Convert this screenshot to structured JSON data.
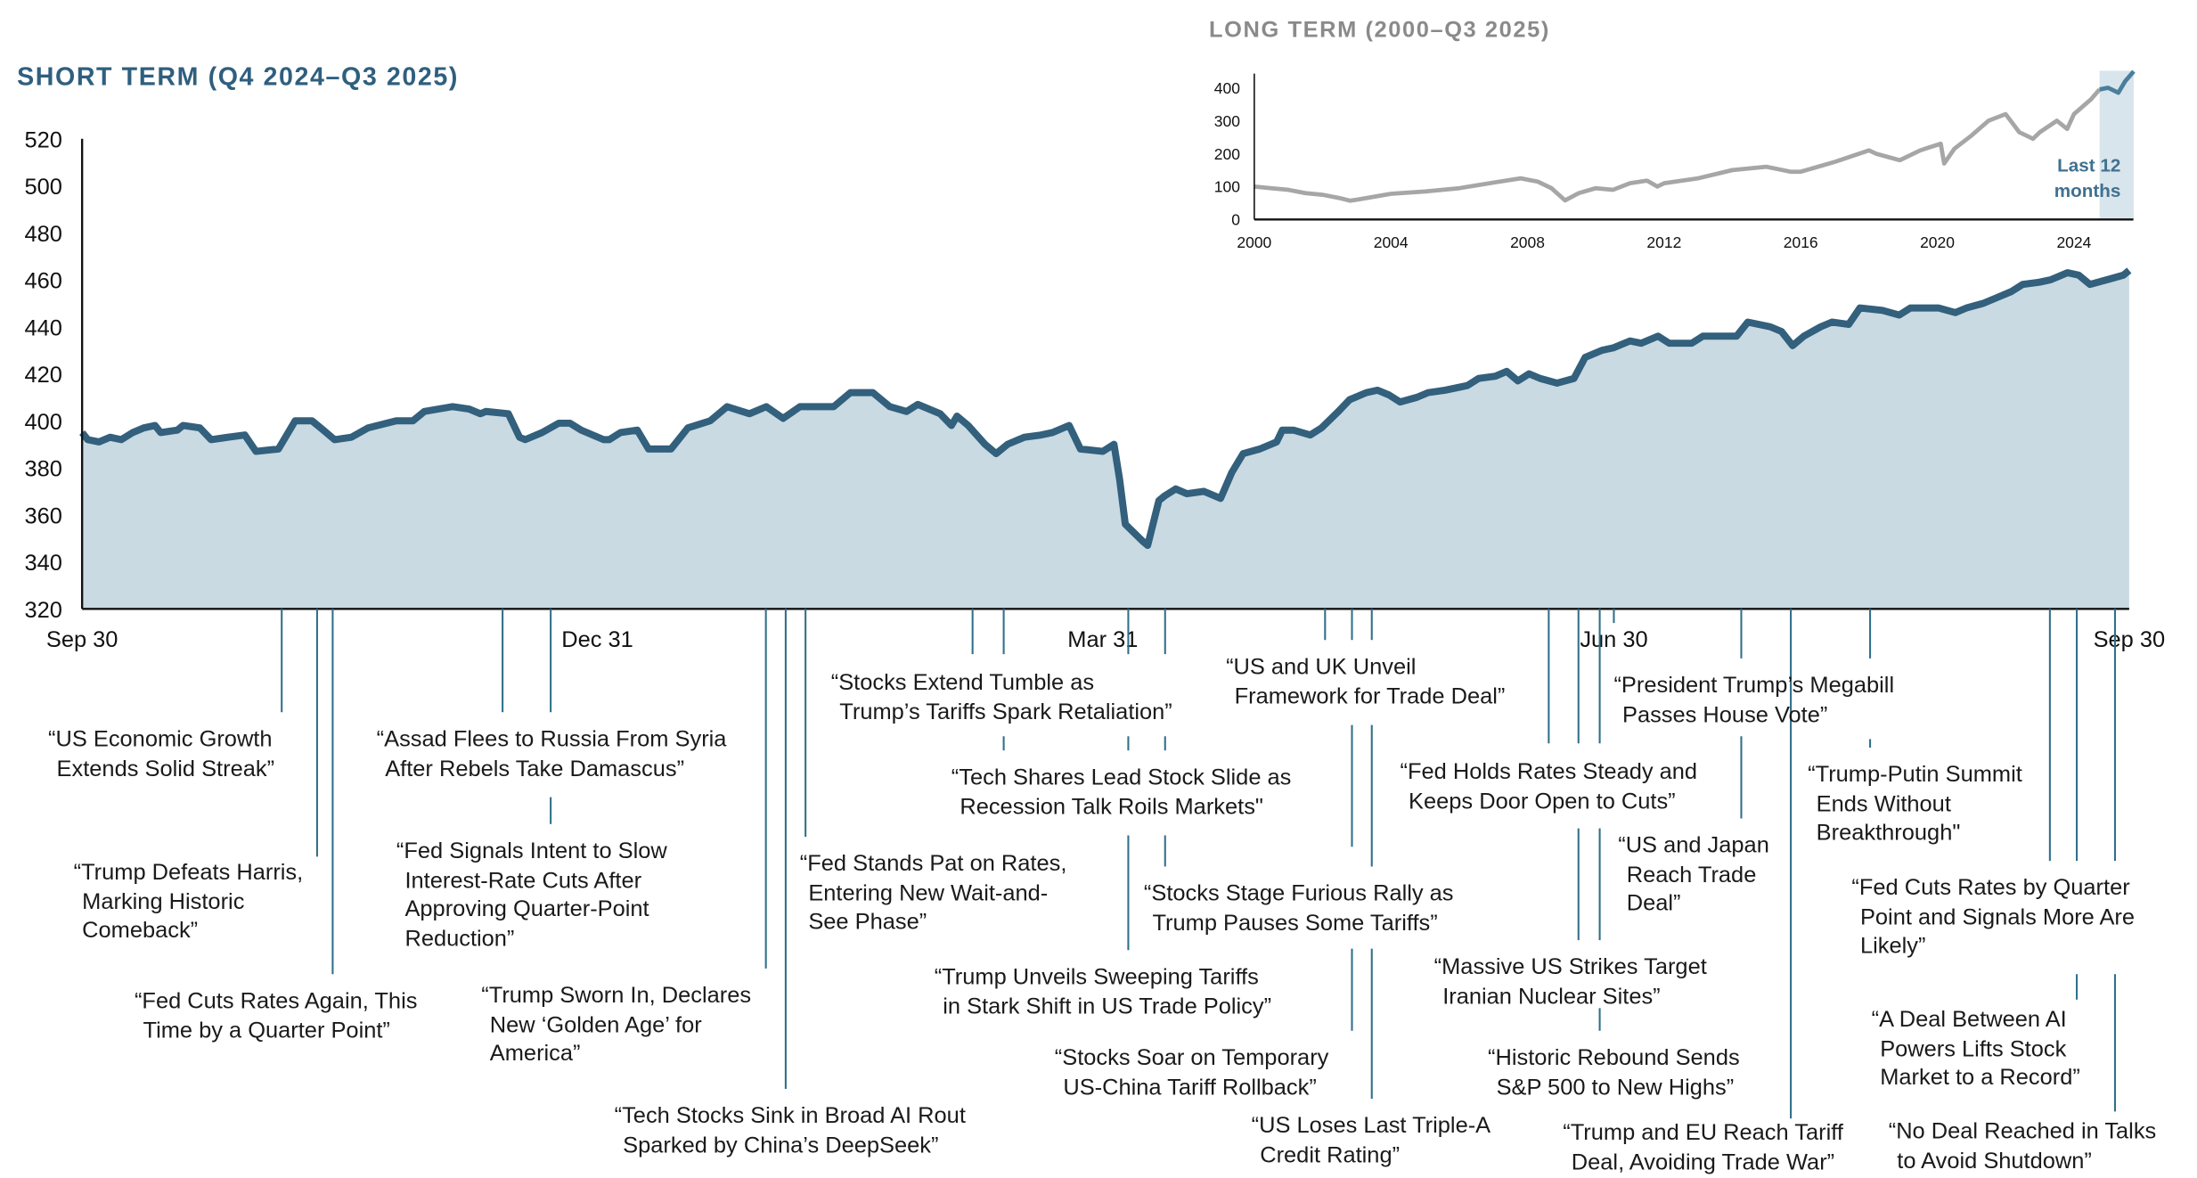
{
  "chart_data": [
    {
      "type": "area",
      "title": "SHORT TERM (Q4 2024–Q3 2025)",
      "xlabel": "",
      "ylabel": "",
      "x_unit": "days since Sep 30, 2024",
      "ylim": [
        320,
        520
      ],
      "yticks": [
        320,
        340,
        360,
        380,
        400,
        420,
        440,
        460,
        480,
        500,
        520
      ],
      "xticks": [
        {
          "day": 0,
          "label": "Sep 30"
        },
        {
          "day": 92,
          "label": "Dec 31"
        },
        {
          "day": 182,
          "label": "Mar 31"
        },
        {
          "day": 273,
          "label": "Jun 30"
        },
        {
          "day": 365,
          "label": "Sep 30"
        }
      ],
      "x": [
        0,
        1,
        3,
        5,
        7,
        9,
        11,
        13,
        14,
        17,
        18,
        21,
        23,
        26,
        29,
        31,
        35,
        38,
        41,
        43,
        45,
        48,
        51,
        56,
        59,
        61,
        66,
        69,
        71,
        72,
        76,
        78,
        79,
        82,
        85,
        87,
        89,
        93,
        94,
        96,
        99,
        101,
        105,
        108,
        112,
        115,
        119,
        122,
        125,
        128,
        130,
        134,
        137,
        141,
        144,
        147,
        149,
        153,
        155,
        156,
        158,
        161,
        163,
        165,
        168,
        171,
        173,
        176,
        178,
        182,
        184,
        185,
        186,
        189,
        190,
        192,
        193,
        195,
        197,
        200,
        203,
        205,
        207,
        210,
        213,
        214,
        216,
        219,
        221,
        224,
        226,
        229,
        231,
        233,
        235,
        238,
        240,
        243,
        247,
        249,
        252,
        254,
        256,
        258,
        260,
        263,
        266,
        268,
        271,
        273,
        276,
        278,
        281,
        283,
        287,
        289,
        292,
        295,
        297,
        301,
        303,
        305,
        307,
        310,
        312,
        315,
        317,
        321,
        324,
        326,
        329,
        331,
        334,
        336,
        339,
        341,
        344,
        346,
        349,
        351,
        354,
        356,
        358,
        361,
        364,
        365
      ],
      "y": [
        395,
        392,
        391,
        393,
        392,
        395,
        397,
        398,
        395,
        396,
        398,
        397,
        392,
        393,
        394,
        387,
        388,
        400,
        400,
        396,
        392,
        393,
        397,
        400,
        400,
        404,
        406,
        405,
        403,
        404,
        403,
        393,
        392,
        395,
        399,
        399,
        396,
        392,
        392,
        395,
        396,
        388,
        388,
        397,
        400,
        406,
        403,
        406,
        401,
        406,
        406,
        406,
        412,
        412,
        406,
        404,
        407,
        403,
        398,
        402,
        398,
        390,
        386,
        390,
        393,
        394,
        395,
        398,
        388,
        387,
        390,
        375,
        356,
        349,
        347,
        366,
        368,
        371,
        369,
        370,
        367,
        378,
        386,
        388,
        391,
        396,
        396,
        394,
        397,
        404,
        409,
        412,
        413,
        411,
        408,
        410,
        412,
        413,
        415,
        418,
        419,
        421,
        417,
        420,
        418,
        416,
        418,
        427,
        430,
        431,
        434,
        433,
        436,
        433,
        433,
        436,
        436,
        436,
        442,
        440,
        438,
        432,
        436,
        440,
        442,
        441,
        448,
        447,
        445,
        448,
        448,
        448,
        446,
        448,
        450,
        452,
        455,
        458,
        459,
        460,
        463,
        462,
        458,
        460,
        462,
        464
      ],
      "events": [
        {
          "day": 36,
          "lines": [
            "“US Economic Growth",
            "Extends Solid Streak”"
          ]
        },
        {
          "day": 42,
          "lines": [
            "“Trump Defeats Harris,",
            "Marking Historic",
            "Comeback”"
          ]
        },
        {
          "day": 45,
          "lines": [
            "“Fed Cuts Rates Again, This",
            "Time by a Quarter Point”"
          ]
        },
        {
          "day": 75,
          "lines": [
            "“Assad Flees to Russia From Syria",
            "After Rebels Take Damascus”"
          ]
        },
        {
          "day": 84,
          "lines": [
            "“Fed Signals Intent to Slow",
            "Interest-Rate Cuts After",
            "Approving Quarter-Point",
            "Reduction”"
          ]
        },
        {
          "day": 122,
          "lines": [
            "“Trump Sworn In, Declares",
            "New ‘Golden Age’ for",
            "America”"
          ]
        },
        {
          "day": 126,
          "lines": [
            "“Tech Stocks Sink in Broad AI Rout",
            "Sparked by China’s DeepSeek”"
          ]
        },
        {
          "day": 129,
          "lines": [
            "“Fed Stands Pat on Rates,",
            "Entering New Wait-and-",
            "See Phase”"
          ]
        },
        {
          "day": 159,
          "lines": [
            "“Stocks Extend Tumble as",
            "Trump’s Tariffs Spark Retaliation”"
          ]
        },
        {
          "day": 164,
          "lines": [
            "“Tech Shares Lead Stock Slide as",
            "Recession Talk Roils Markets\""
          ]
        },
        {
          "day": 187,
          "lines": [
            "“Trump Unveils Sweeping Tariffs",
            "in Stark Shift in US Trade Policy”"
          ]
        },
        {
          "day": 193,
          "lines": [
            "“Stocks Stage Furious Rally as",
            "Trump Pauses Some Tariffs”"
          ]
        },
        {
          "day": 222,
          "lines": [
            "“US and UK Unveil",
            "Framework for Trade Deal”"
          ]
        },
        {
          "day": 226,
          "lines": [
            "“Stocks Soar on Temporary",
            "US-China Tariff Rollback”"
          ]
        },
        {
          "day": 230,
          "lines": [
            "“US Loses Last Triple-A",
            "Credit Rating”"
          ]
        },
        {
          "day": 261,
          "lines": [
            "“Fed Holds Rates Steady and",
            "Keeps Door Open to Cuts”"
          ]
        },
        {
          "day": 267,
          "lines": [
            "“Massive US Strikes Target",
            "Iranian Nuclear Sites”"
          ]
        },
        {
          "day": 270,
          "lines": [
            "“Historic Rebound Sends",
            "S&P 500 to New Highs”"
          ]
        },
        {
          "day": 276,
          "lines": [
            "“President Trump’s Megabill",
            "Passes House Vote”"
          ]
        },
        {
          "day": 296,
          "lines": [
            "“US and Japan",
            "Reach Trade",
            "Deal”"
          ]
        },
        {
          "day": 305,
          "lines": [
            "“Trump and EU Reach Tariff",
            "Deal, Avoiding Trade War”"
          ]
        },
        {
          "day": 319,
          "lines": [
            "“Trump-Putin Summit",
            "Ends Without",
            "Breakthrough\""
          ]
        },
        {
          "day": 351,
          "lines": [
            "“Fed Cuts Rates by Quarter",
            "Point and Signals More Are",
            "Likely”"
          ]
        },
        {
          "day": 356,
          "lines": [
            "“A Deal Between AI",
            "Powers Lifts Stock",
            "Market to a Record”"
          ]
        },
        {
          "day": 363,
          "lines": [
            "“No Deal Reached in Talks",
            "to Avoid Shutdown”"
          ]
        }
      ]
    },
    {
      "type": "line",
      "title": "LONG TERM (2000–Q3 2025)",
      "xlim": [
        2000,
        2025.75
      ],
      "ylim": [
        0,
        450
      ],
      "yticks": [
        0,
        100,
        200,
        300,
        400
      ],
      "xticks": [
        2000,
        2004,
        2008,
        2012,
        2016,
        2020,
        2024
      ],
      "highlight": {
        "from": 2024.75,
        "to": 2025.75,
        "label_lines": [
          "Last 12",
          "months"
        ]
      },
      "x": [
        2000,
        2000.5,
        2001,
        2001.5,
        2002,
        2002.5,
        2002.8,
        2003,
        2004,
        2005,
        2006,
        2007,
        2007.8,
        2008.3,
        2008.7,
        2009.1,
        2009.5,
        2010,
        2010.5,
        2011,
        2011.5,
        2011.8,
        2012,
        2013,
        2014,
        2015,
        2015.7,
        2016,
        2016.5,
        2017,
        2018,
        2018.2,
        2018.9,
        2019.5,
        2020.1,
        2020.2,
        2020.5,
        2021,
        2021.5,
        2022,
        2022.4,
        2022.8,
        2023,
        2023.5,
        2023.8,
        2024,
        2024.5,
        2024.75,
        2025,
        2025.3,
        2025.5,
        2025.75
      ],
      "y": [
        100,
        95,
        90,
        80,
        75,
        65,
        57,
        60,
        78,
        85,
        95,
        112,
        125,
        115,
        95,
        58,
        80,
        95,
        90,
        110,
        118,
        100,
        110,
        125,
        150,
        160,
        145,
        145,
        160,
        175,
        210,
        200,
        180,
        210,
        230,
        170,
        215,
        255,
        300,
        320,
        265,
        245,
        265,
        300,
        275,
        320,
        365,
        395,
        400,
        385,
        420,
        450
      ]
    }
  ],
  "colors": {
    "line": "#33607c",
    "fill": "#c9dae3",
    "title": "#2f5f7e",
    "leader": "#2f6f8a",
    "long_line": "#a6a6a6",
    "long_recent": "#4a7f9c",
    "band": "#d9e5ec"
  }
}
